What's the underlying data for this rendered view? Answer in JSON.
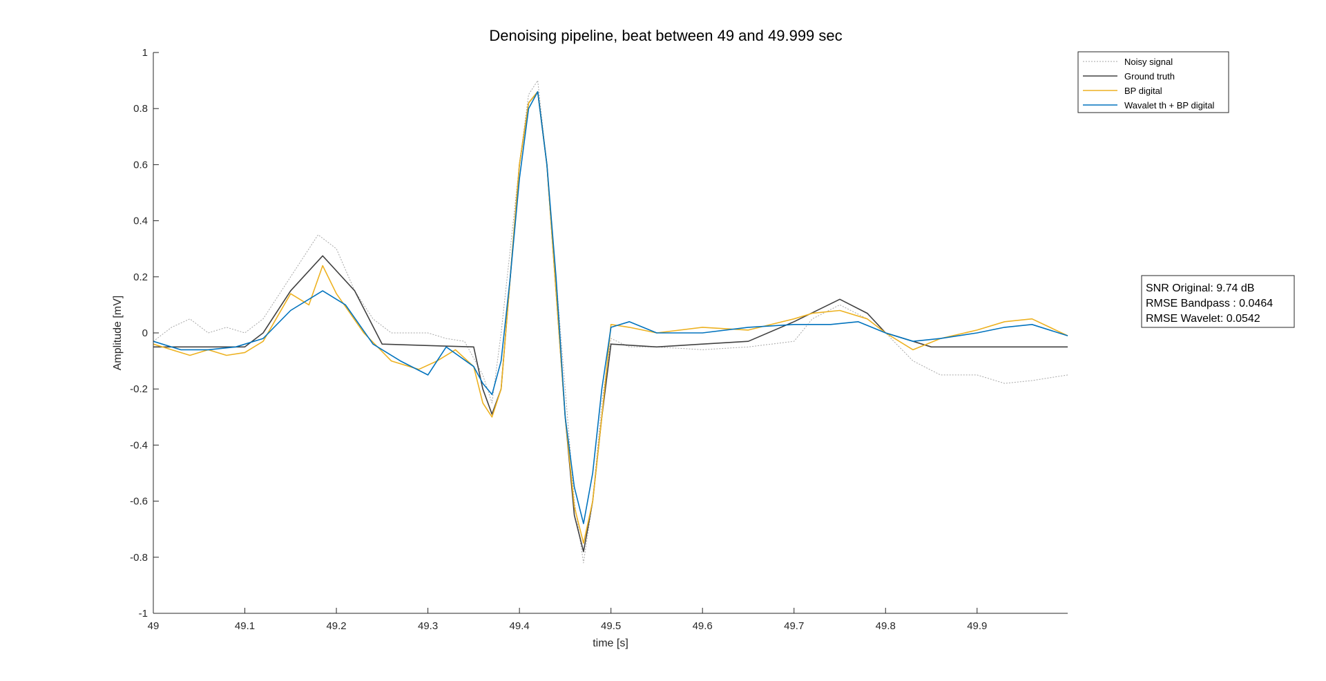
{
  "chart_data": {
    "type": "line",
    "title": "Denoising pipeline, beat between 49 and 49.999 sec",
    "xlabel": "time [s]",
    "ylabel": "Amplitude [mV]",
    "xlim": [
      49,
      49.999
    ],
    "ylim": [
      -1,
      1
    ],
    "xticks": [
      49,
      49.1,
      49.2,
      49.3,
      49.4,
      49.5,
      49.6,
      49.7,
      49.8,
      49.9
    ],
    "xtick_labels": [
      "49",
      "49.1",
      "49.2",
      "49.3",
      "49.4",
      "49.5",
      "49.6",
      "49.7",
      "49.8",
      "49.9"
    ],
    "yticks": [
      -1,
      -0.8,
      -0.6,
      -0.4,
      -0.2,
      0,
      0.2,
      0.4,
      0.6,
      0.8,
      1
    ],
    "ytick_labels": [
      "-1",
      "-0.8",
      "-0.6",
      "-0.4",
      "-0.2",
      "0",
      "0.2",
      "0.4",
      "0.6",
      "0.8",
      "1"
    ],
    "grid": false,
    "legend_position": "top-right",
    "series": [
      {
        "name": "Noisy signal",
        "color": "#a6a6a6",
        "style": "dotted",
        "x": [
          49.0,
          49.02,
          49.04,
          49.06,
          49.08,
          49.1,
          49.12,
          49.14,
          49.16,
          49.18,
          49.2,
          49.22,
          49.24,
          49.26,
          49.28,
          49.3,
          49.32,
          49.34,
          49.36,
          49.37,
          49.38,
          49.39,
          49.4,
          49.41,
          49.42,
          49.43,
          49.44,
          49.45,
          49.46,
          49.47,
          49.48,
          49.49,
          49.5,
          49.52,
          49.55,
          49.6,
          49.65,
          49.7,
          49.72,
          49.75,
          49.78,
          49.8,
          49.83,
          49.86,
          49.9,
          49.93,
          49.96,
          49.999
        ],
        "y": [
          -0.03,
          0.02,
          0.05,
          0.0,
          0.02,
          0.0,
          0.05,
          0.15,
          0.25,
          0.35,
          0.3,
          0.15,
          0.05,
          0.0,
          0.0,
          0.0,
          -0.02,
          -0.03,
          -0.15,
          -0.25,
          0.0,
          0.3,
          0.6,
          0.85,
          0.9,
          0.6,
          0.2,
          -0.2,
          -0.6,
          -0.82,
          -0.6,
          -0.25,
          -0.02,
          -0.05,
          -0.05,
          -0.06,
          -0.05,
          -0.03,
          0.05,
          0.1,
          0.05,
          0.0,
          -0.1,
          -0.15,
          -0.15,
          -0.18,
          -0.17,
          -0.15
        ]
      },
      {
        "name": "Ground truth",
        "color": "#404040",
        "style": "solid",
        "x": [
          49.0,
          49.05,
          49.1,
          49.12,
          49.15,
          49.185,
          49.22,
          49.25,
          49.3,
          49.35,
          49.36,
          49.37,
          49.38,
          49.39,
          49.4,
          49.41,
          49.42,
          49.43,
          49.44,
          49.45,
          49.46,
          49.47,
          49.48,
          49.49,
          49.5,
          49.55,
          49.6,
          49.65,
          49.7,
          49.75,
          49.78,
          49.8,
          49.85,
          49.9,
          49.95,
          49.999
        ],
        "y": [
          -0.05,
          -0.05,
          -0.05,
          0.0,
          0.15,
          0.275,
          0.15,
          -0.04,
          -0.045,
          -0.05,
          -0.2,
          -0.29,
          -0.2,
          0.2,
          0.6,
          0.82,
          0.86,
          0.6,
          0.15,
          -0.3,
          -0.65,
          -0.78,
          -0.6,
          -0.3,
          -0.04,
          -0.05,
          -0.04,
          -0.03,
          0.04,
          0.12,
          0.07,
          0.0,
          -0.05,
          -0.05,
          -0.05,
          -0.05
        ]
      },
      {
        "name": "BP digital",
        "color": "#edb120",
        "style": "solid",
        "x": [
          49.0,
          49.02,
          49.04,
          49.06,
          49.08,
          49.1,
          49.12,
          49.15,
          49.17,
          49.185,
          49.2,
          49.23,
          49.26,
          49.29,
          49.31,
          49.33,
          49.35,
          49.36,
          49.37,
          49.38,
          49.39,
          49.4,
          49.41,
          49.42,
          49.43,
          49.44,
          49.45,
          49.46,
          49.47,
          49.48,
          49.49,
          49.5,
          49.52,
          49.55,
          49.6,
          49.65,
          49.7,
          49.72,
          49.75,
          49.78,
          49.8,
          49.83,
          49.86,
          49.9,
          49.93,
          49.96,
          49.999
        ],
        "y": [
          -0.04,
          -0.06,
          -0.08,
          -0.06,
          -0.08,
          -0.07,
          -0.03,
          0.14,
          0.1,
          0.24,
          0.14,
          0.0,
          -0.1,
          -0.13,
          -0.1,
          -0.06,
          -0.12,
          -0.25,
          -0.3,
          -0.2,
          0.2,
          0.6,
          0.82,
          0.86,
          0.6,
          0.15,
          -0.3,
          -0.62,
          -0.75,
          -0.6,
          -0.3,
          0.03,
          0.02,
          0.0,
          0.02,
          0.01,
          0.05,
          0.07,
          0.08,
          0.05,
          0.0,
          -0.06,
          -0.02,
          0.01,
          0.04,
          0.05,
          -0.01
        ]
      },
      {
        "name": "Wavalet th + BP digital",
        "color": "#0072bd",
        "style": "solid",
        "x": [
          49.0,
          49.03,
          49.06,
          49.09,
          49.12,
          49.15,
          49.185,
          49.21,
          49.24,
          49.27,
          49.3,
          49.32,
          49.35,
          49.36,
          49.37,
          49.38,
          49.39,
          49.4,
          49.41,
          49.42,
          49.43,
          49.44,
          49.45,
          49.46,
          49.47,
          49.48,
          49.49,
          49.5,
          49.52,
          49.55,
          49.6,
          49.65,
          49.7,
          49.74,
          49.77,
          49.8,
          49.83,
          49.86,
          49.9,
          49.93,
          49.96,
          49.999
        ],
        "y": [
          -0.03,
          -0.06,
          -0.06,
          -0.05,
          -0.02,
          0.08,
          0.15,
          0.1,
          -0.04,
          -0.1,
          -0.15,
          -0.05,
          -0.12,
          -0.18,
          -0.22,
          -0.1,
          0.2,
          0.55,
          0.8,
          0.86,
          0.6,
          0.2,
          -0.3,
          -0.55,
          -0.68,
          -0.5,
          -0.2,
          0.02,
          0.04,
          0.0,
          0.0,
          0.02,
          0.03,
          0.03,
          0.04,
          0.0,
          -0.03,
          -0.02,
          0.0,
          0.02,
          0.03,
          -0.01
        ]
      }
    ]
  },
  "info_box": {
    "lines": [
      "SNR Original: 9.74 dB",
      "RMSE Bandpass : 0.0464",
      "RMSE Wavelet: 0.0542"
    ]
  }
}
